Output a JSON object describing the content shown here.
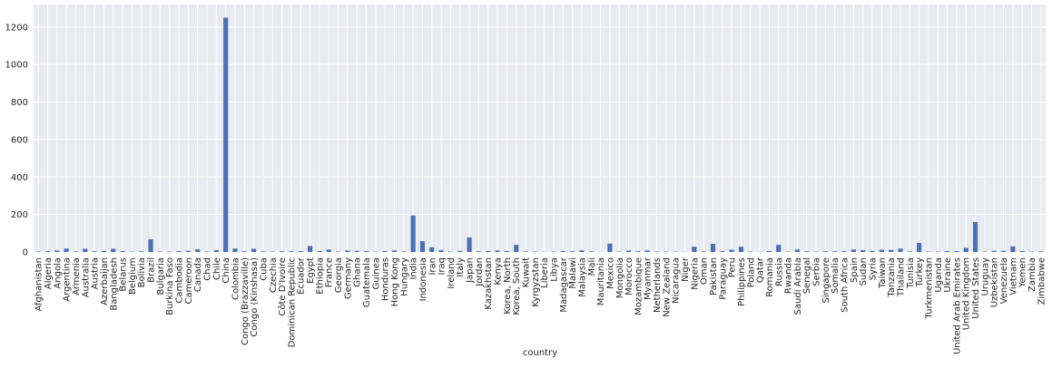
{
  "chart_data": {
    "type": "bar",
    "xlabel": "country",
    "categories": [
      "Afghanistan",
      "Algeria",
      "Angola",
      "Argentina",
      "Armenia",
      "Australia",
      "Austria",
      "Azerbaijan",
      "Bangladesh",
      "Belarus",
      "Belgium",
      "Bolivia",
      "Brazil",
      "Bulgaria",
      "Burkina Faso",
      "Cambodia",
      "Cameroon",
      "Canada",
      "Chad",
      "Chile",
      "China",
      "Colombia",
      "Congo (Brazzaville)",
      "Congo (Kinshasa)",
      "Cuba",
      "Czechia",
      "Côte D'Ivoire",
      "Dominican Republic",
      "Ecuador",
      "Egypt",
      "Ethiopia",
      "France",
      "Georgia",
      "Germany",
      "Ghana",
      "Guatemala",
      "Guinea",
      "Honduras",
      "Hong Kong",
      "Hungary",
      "India",
      "Indonesia",
      "Iran",
      "Iraq",
      "Ireland",
      "Italy",
      "Japan",
      "Jordan",
      "Kazakhstan",
      "Kenya",
      "Korea, North",
      "Korea, South",
      "Kuwait",
      "Kyrgyzstan",
      "Liberia",
      "Libya",
      "Madagascar",
      "Malawi",
      "Malaysia",
      "Mali",
      "Mauritania",
      "Mexico",
      "Mongolia",
      "Morocco",
      "Mozambique",
      "Myanmar",
      "Netherlands",
      "New Zealand",
      "Nicaragua",
      "Niger",
      "Nigeria",
      "Oman",
      "Pakistan",
      "Paraguay",
      "Peru",
      "Philippines",
      "Poland",
      "Qatar",
      "Romania",
      "Russia",
      "Rwanda",
      "Saudi Arabia",
      "Senegal",
      "Serbia",
      "Singapore",
      "Somalia",
      "South Africa",
      "Spain",
      "Sudan",
      "Syria",
      "Taiwan",
      "Tanzania",
      "Thailand",
      "Tunisia",
      "Turkey",
      "Turkmenistan",
      "Uganda",
      "Ukraine",
      "United Arab Emirates",
      "United Kingdom",
      "United States",
      "Uruguay",
      "Uzbekistan",
      "Venezuela",
      "Vietnam",
      "Yemen",
      "Zambia",
      "Zimbabwe"
    ],
    "values": [
      3,
      4,
      8,
      18,
      3,
      17,
      4,
      5,
      17,
      5,
      2,
      4,
      68,
      2,
      2,
      5,
      6,
      14,
      2,
      10,
      1250,
      18,
      4,
      17,
      3,
      2,
      4,
      4,
      5,
      32,
      5,
      13,
      2,
      8,
      6,
      5,
      2,
      5,
      8,
      3,
      195,
      58,
      25,
      10,
      2,
      6,
      78,
      4,
      5,
      8,
      5,
      38,
      3,
      2,
      1,
      2,
      5,
      4,
      9,
      3,
      1,
      45,
      2,
      8,
      4,
      8,
      2,
      2,
      2,
      1,
      28,
      3,
      43,
      5,
      12,
      28,
      2,
      1,
      5,
      38,
      2,
      13,
      4,
      2,
      4,
      4,
      5,
      13,
      10,
      6,
      12,
      11,
      18,
      3,
      48,
      2,
      2,
      5,
      5,
      22,
      160,
      2,
      6,
      6,
      30,
      5,
      2,
      4
    ],
    "color": "#4c72b0",
    "ylim": [
      0,
      1320
    ],
    "yticks": [
      0,
      200,
      400,
      600,
      800,
      1000,
      1200
    ],
    "grid": true
  }
}
